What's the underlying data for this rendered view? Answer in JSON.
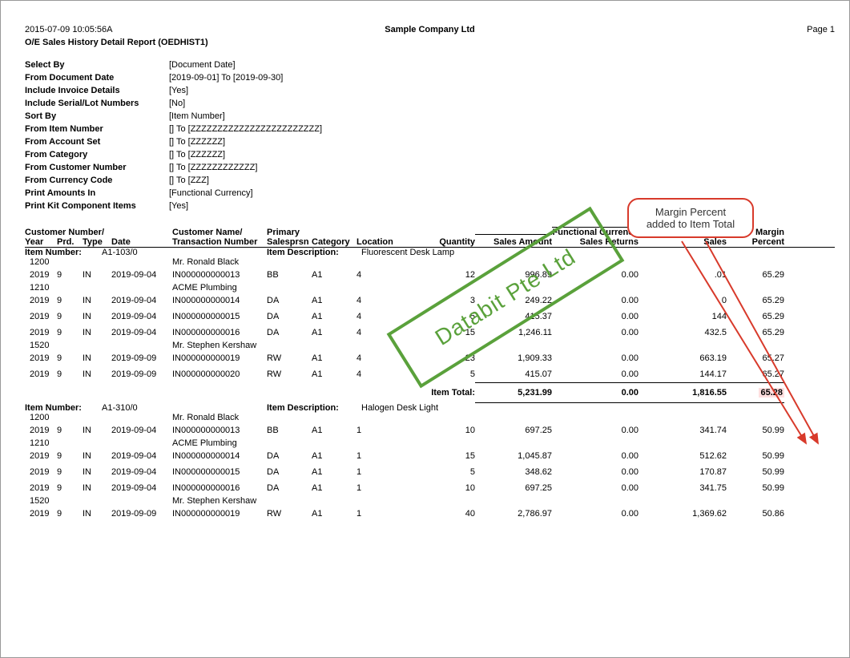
{
  "colors": {
    "text": "#000000",
    "border": "#999999",
    "watermark_border": "#5aa13b",
    "watermark_text": "#5aa13b",
    "callout_border": "#d83a2b",
    "highlight_bg": "#ffe0e0"
  },
  "header": {
    "timestamp": "2015-07-09 10:05:56A",
    "company": "Sample Company Ltd",
    "page": "Page 1",
    "title": "O/E Sales History Detail Report (OEDHIST1)"
  },
  "params": [
    {
      "label": "Select By",
      "value": "[Document Date]"
    },
    {
      "label": "From Document Date",
      "value": "[2019-09-01] To [2019-09-30]"
    },
    {
      "label": "Include Invoice Details",
      "value": "[Yes]"
    },
    {
      "label": "Include Serial/Lot Numbers",
      "value": "[No]"
    },
    {
      "label": "Sort By",
      "value": "[Item Number]"
    },
    {
      "label": "From Item Number",
      "value": "[] To [ZZZZZZZZZZZZZZZZZZZZZZZZ]"
    },
    {
      "label": "From Account Set",
      "value": "[] To [ZZZZZZ]"
    },
    {
      "label": "From Category",
      "value": "[] To [ZZZZZZ]"
    },
    {
      "label": "From Customer Number",
      "value": "[] To [ZZZZZZZZZZZZ]"
    },
    {
      "label": "From Currency Code",
      "value": "[] To [ZZZ]"
    },
    {
      "label": "Print Amounts In",
      "value": "[Functional Currency]"
    },
    {
      "label": "Print Kit Component Items",
      "value": "[Yes]"
    }
  ],
  "columns_line1": {
    "cust_no": "Customer Number/",
    "cust_name": "Customer Name/",
    "primary": "Primary",
    "func_curr": "Functional Currency",
    "margin": "Margin"
  },
  "columns_line2": {
    "year": "Year",
    "prd": "Prd.",
    "type": "Type",
    "date": "Date",
    "trans": "Transaction Number",
    "salesprsn": "Salesprsn",
    "category": "Category",
    "location": "Location",
    "quantity": "Quantity",
    "sales_amount": "Sales Amount",
    "sales_returns": "Sales Returns",
    "sales": "Sales",
    "percent": "Percent"
  },
  "labels": {
    "item_number": "Item Number:",
    "item_description": "Item Description:",
    "item_total": "Item Total:"
  },
  "sections": [
    {
      "item_number": "A1-103/0",
      "item_description": "Fluorescent Desk Lamp",
      "groups": [
        {
          "cust_no": "1200",
          "cust_name": "Mr. Ronald Black",
          "rows": [
            {
              "year": "2019",
              "prd": "9",
              "type": "IN",
              "date": "2019-09-04",
              "trans": "IN000000000013",
              "sp": "BB",
              "cat": "A1",
              "loc": "4",
              "qty": "12",
              "samt": "996.89",
              "sret": "0.00",
              "sales": ".01",
              "mpct": "65.29"
            }
          ]
        },
        {
          "cust_no": "1210",
          "cust_name": "ACME Plumbing",
          "rows": [
            {
              "year": "2019",
              "prd": "9",
              "type": "IN",
              "date": "2019-09-04",
              "trans": "IN000000000014",
              "sp": "DA",
              "cat": "A1",
              "loc": "4",
              "qty": "3",
              "samt": "249.22",
              "sret": "0.00",
              "sales": "0",
              "mpct": "65.29"
            },
            {
              "year": "2019",
              "prd": "9",
              "type": "IN",
              "date": "2019-09-04",
              "trans": "IN000000000015",
              "sp": "DA",
              "cat": "A1",
              "loc": "4",
              "qty": "5",
              "samt": "415.37",
              "sret": "0.00",
              "sales": "144",
              "mpct": "65.29"
            },
            {
              "year": "2019",
              "prd": "9",
              "type": "IN",
              "date": "2019-09-04",
              "trans": "IN000000000016",
              "sp": "DA",
              "cat": "A1",
              "loc": "4",
              "qty": "15",
              "samt": "1,246.11",
              "sret": "0.00",
              "sales": "432.5",
              "mpct": "65.29"
            }
          ]
        },
        {
          "cust_no": "1520",
          "cust_name": "Mr. Stephen Kershaw",
          "rows": [
            {
              "year": "2019",
              "prd": "9",
              "type": "IN",
              "date": "2019-09-09",
              "trans": "IN000000000019",
              "sp": "RW",
              "cat": "A1",
              "loc": "4",
              "qty": "23",
              "samt": "1,909.33",
              "sret": "0.00",
              "sales": "663.19",
              "mpct": "65.27"
            },
            {
              "year": "2019",
              "prd": "9",
              "type": "IN",
              "date": "2019-09-09",
              "trans": "IN000000000020",
              "sp": "RW",
              "cat": "A1",
              "loc": "4",
              "qty": "5",
              "samt": "415.07",
              "sret": "0.00",
              "sales": "144.17",
              "mpct": "65.27"
            }
          ]
        }
      ],
      "total": {
        "samt": "5,231.99",
        "sret": "0.00",
        "sales": "1,816.55",
        "mpct": "65.28"
      }
    },
    {
      "item_number": "A1-310/0",
      "item_description": "Halogen Desk Light",
      "groups": [
        {
          "cust_no": "1200",
          "cust_name": "Mr. Ronald Black",
          "rows": [
            {
              "year": "2019",
              "prd": "9",
              "type": "IN",
              "date": "2019-09-04",
              "trans": "IN000000000013",
              "sp": "BB",
              "cat": "A1",
              "loc": "1",
              "qty": "10",
              "samt": "697.25",
              "sret": "0.00",
              "sales": "341.74",
              "mpct": "50.99"
            }
          ]
        },
        {
          "cust_no": "1210",
          "cust_name": "ACME Plumbing",
          "rows": [
            {
              "year": "2019",
              "prd": "9",
              "type": "IN",
              "date": "2019-09-04",
              "trans": "IN000000000014",
              "sp": "DA",
              "cat": "A1",
              "loc": "1",
              "qty": "15",
              "samt": "1,045.87",
              "sret": "0.00",
              "sales": "512.62",
              "mpct": "50.99"
            },
            {
              "year": "2019",
              "prd": "9",
              "type": "IN",
              "date": "2019-09-04",
              "trans": "IN000000000015",
              "sp": "DA",
              "cat": "A1",
              "loc": "1",
              "qty": "5",
              "samt": "348.62",
              "sret": "0.00",
              "sales": "170.87",
              "mpct": "50.99"
            },
            {
              "year": "2019",
              "prd": "9",
              "type": "IN",
              "date": "2019-09-04",
              "trans": "IN000000000016",
              "sp": "DA",
              "cat": "A1",
              "loc": "1",
              "qty": "10",
              "samt": "697.25",
              "sret": "0.00",
              "sales": "341.75",
              "mpct": "50.99"
            }
          ]
        },
        {
          "cust_no": "1520",
          "cust_name": "Mr. Stephen Kershaw",
          "rows": [
            {
              "year": "2019",
              "prd": "9",
              "type": "IN",
              "date": "2019-09-09",
              "trans": "IN000000000019",
              "sp": "RW",
              "cat": "A1",
              "loc": "1",
              "qty": "40",
              "samt": "2,786.97",
              "sret": "0.00",
              "sales": "1,369.62",
              "mpct": "50.86"
            }
          ]
        }
      ]
    }
  ],
  "watermark": "Databit Pte Ltd",
  "callout": {
    "line1": "Margin Percent",
    "line2": "added to Item Total"
  }
}
